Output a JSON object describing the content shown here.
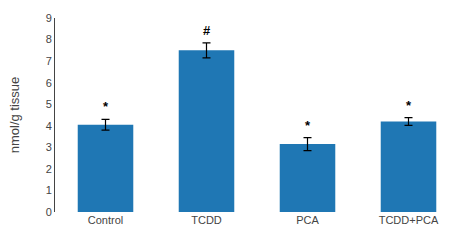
{
  "chart_data": {
    "type": "bar",
    "categories": [
      "Control",
      "TCDD",
      "PCA",
      "TCDD+PCA"
    ],
    "values": [
      4.05,
      7.5,
      3.15,
      4.2
    ],
    "errors": [
      0.25,
      0.35,
      0.3,
      0.18
    ],
    "annotations": [
      {
        "category": "Control",
        "text": "*"
      },
      {
        "category": "TCDD",
        "text": "#"
      },
      {
        "category": "PCA",
        "text": "*"
      },
      {
        "category": "TCDD+PCA",
        "text": "*"
      }
    ],
    "ylabel": "nmol/g tissue",
    "ylim": [
      0,
      9
    ],
    "yticks": [
      0,
      1,
      2,
      3,
      4,
      5,
      6,
      7,
      8,
      9
    ],
    "grid": false
  }
}
